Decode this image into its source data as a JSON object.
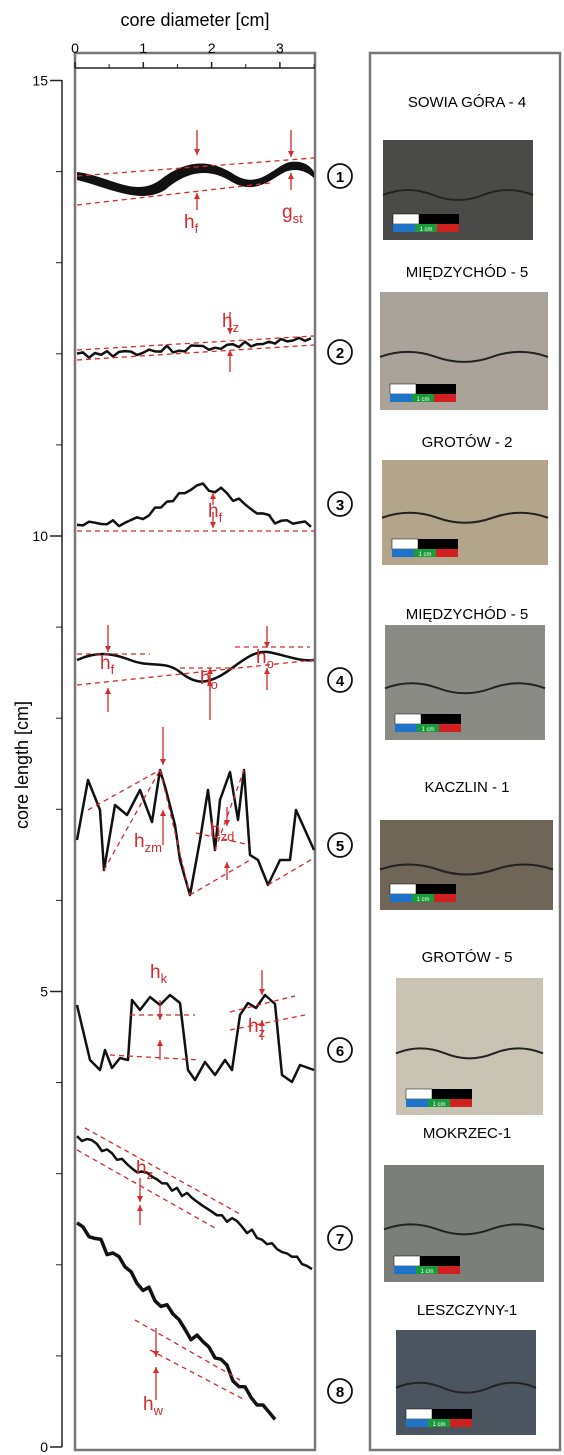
{
  "axes": {
    "x_label": "core diameter [cm]",
    "x_ticks": [
      0,
      1,
      2,
      3
    ],
    "y_label": "core length [cm]",
    "y_ticks": [
      15,
      10,
      5,
      0
    ]
  },
  "scale_bar": "1 cm",
  "styles": [
    {
      "number": "1",
      "core": "SOWIA GÓRA - 4",
      "annotations": [
        {
          "text": "h",
          "sub": "f"
        },
        {
          "text": "g",
          "sub": "st"
        }
      ]
    },
    {
      "number": "2",
      "core": "MIĘDZYCHÓD - 5",
      "annotations": [
        {
          "text": "h",
          "sub": "z"
        }
      ]
    },
    {
      "number": "3",
      "core": "GROTÓW - 2",
      "annotations": [
        {
          "text": "h",
          "sub": "f"
        }
      ]
    },
    {
      "number": "4",
      "core": "MIĘDZYCHÓD - 5",
      "annotations": [
        {
          "text": "h",
          "sub": "f"
        },
        {
          "text": "h",
          "sub": "o"
        },
        {
          "text": "h",
          "sub": "o"
        }
      ]
    },
    {
      "number": "5",
      "core": "KACZLIN - 1",
      "annotations": [
        {
          "text": "h",
          "sub": "zm"
        },
        {
          "text": "h",
          "sub": "zd"
        }
      ]
    },
    {
      "number": "6",
      "core": "GROTÓW - 5",
      "annotations": [
        {
          "text": "h",
          "sub": "k"
        },
        {
          "text": "h",
          "sub": "z"
        }
      ]
    },
    {
      "number": "7",
      "core": "MOKRZEC-1",
      "annotations": [
        {
          "text": "h",
          "sub": "z"
        }
      ]
    },
    {
      "number": "8",
      "core": "LESZCZYNY-1",
      "annotations": [
        {
          "text": "h",
          "sub": "w"
        }
      ]
    }
  ]
}
